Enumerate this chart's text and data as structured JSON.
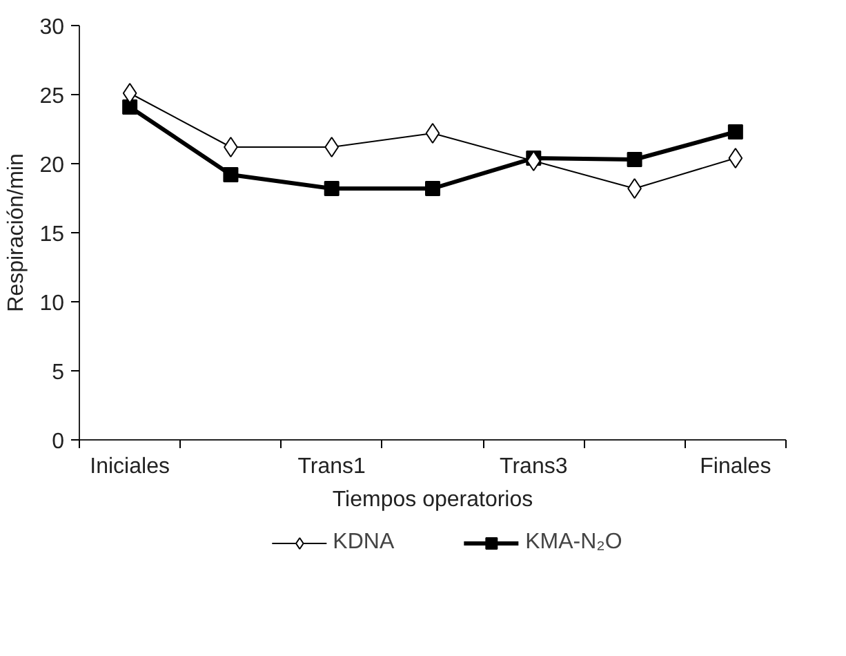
{
  "chart_data": {
    "type": "line",
    "xlabel": "Tiempos operatorios",
    "ylabel": "Respiración/min",
    "categories": [
      "Iniciales",
      null,
      "Trans1",
      null,
      "Trans3",
      null,
      "Finales"
    ],
    "series": [
      {
        "name": "KDNA",
        "color": "#000000",
        "marker": "diamond",
        "values": [
          25.1,
          21.2,
          21.2,
          22.2,
          20.2,
          18.2,
          20.4
        ]
      },
      {
        "name": "KMA-N₂O",
        "color": "#000000",
        "marker": "square",
        "values": [
          24.1,
          19.2,
          18.2,
          18.2,
          20.4,
          20.3,
          22.3
        ]
      }
    ],
    "ylim": [
      0,
      30
    ],
    "yticks": [
      0,
      5,
      10,
      15,
      20,
      25,
      30
    ],
    "grid": false,
    "legend": "bottom"
  }
}
